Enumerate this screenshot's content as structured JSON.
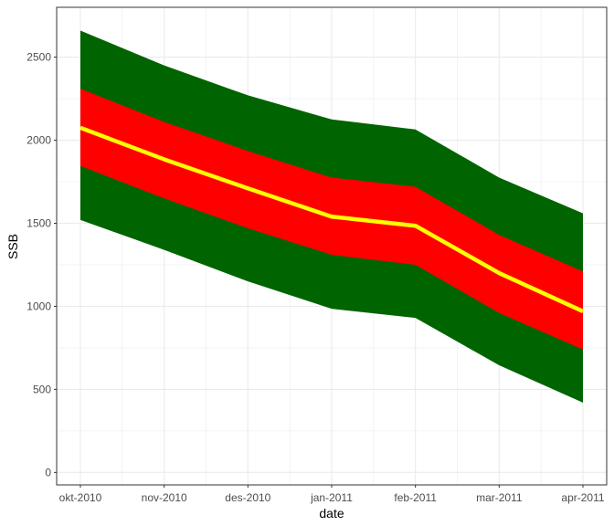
{
  "chart_data": {
    "type": "area",
    "title": "",
    "xlabel": "date",
    "ylabel": "SSB",
    "x": [
      "2010-10-01",
      "2010-11-01",
      "2010-12-01",
      "2011-01-01",
      "2011-02-01",
      "2011-03-01",
      "2011-04-01"
    ],
    "x_tick_labels": [
      "okt-2010",
      "nov-2010",
      "des-2010",
      "jan-2011",
      "feb-2011",
      "mar-2011",
      "apr-2011"
    ],
    "y_ticks": [
      0,
      500,
      1000,
      1500,
      2000,
      2500
    ],
    "ylim": [
      -75,
      2800
    ],
    "grid": true,
    "series": [
      {
        "role": "outer-band",
        "color": "#006400",
        "lower": [
          1520,
          1340,
          1150,
          985,
          930,
          645,
          420
        ],
        "upper": [
          2660,
          2450,
          2270,
          2125,
          2065,
          1775,
          1560
        ]
      },
      {
        "role": "inner-band",
        "color": "#ff0000",
        "lower": [
          1845,
          1650,
          1470,
          1310,
          1250,
          960,
          740
        ],
        "upper": [
          2310,
          2110,
          1935,
          1775,
          1720,
          1430,
          1210
        ]
      },
      {
        "role": "central-line",
        "color": "#ffff00",
        "values": [
          2075,
          1885,
          1710,
          1540,
          1485,
          1200,
          970
        ]
      }
    ]
  }
}
